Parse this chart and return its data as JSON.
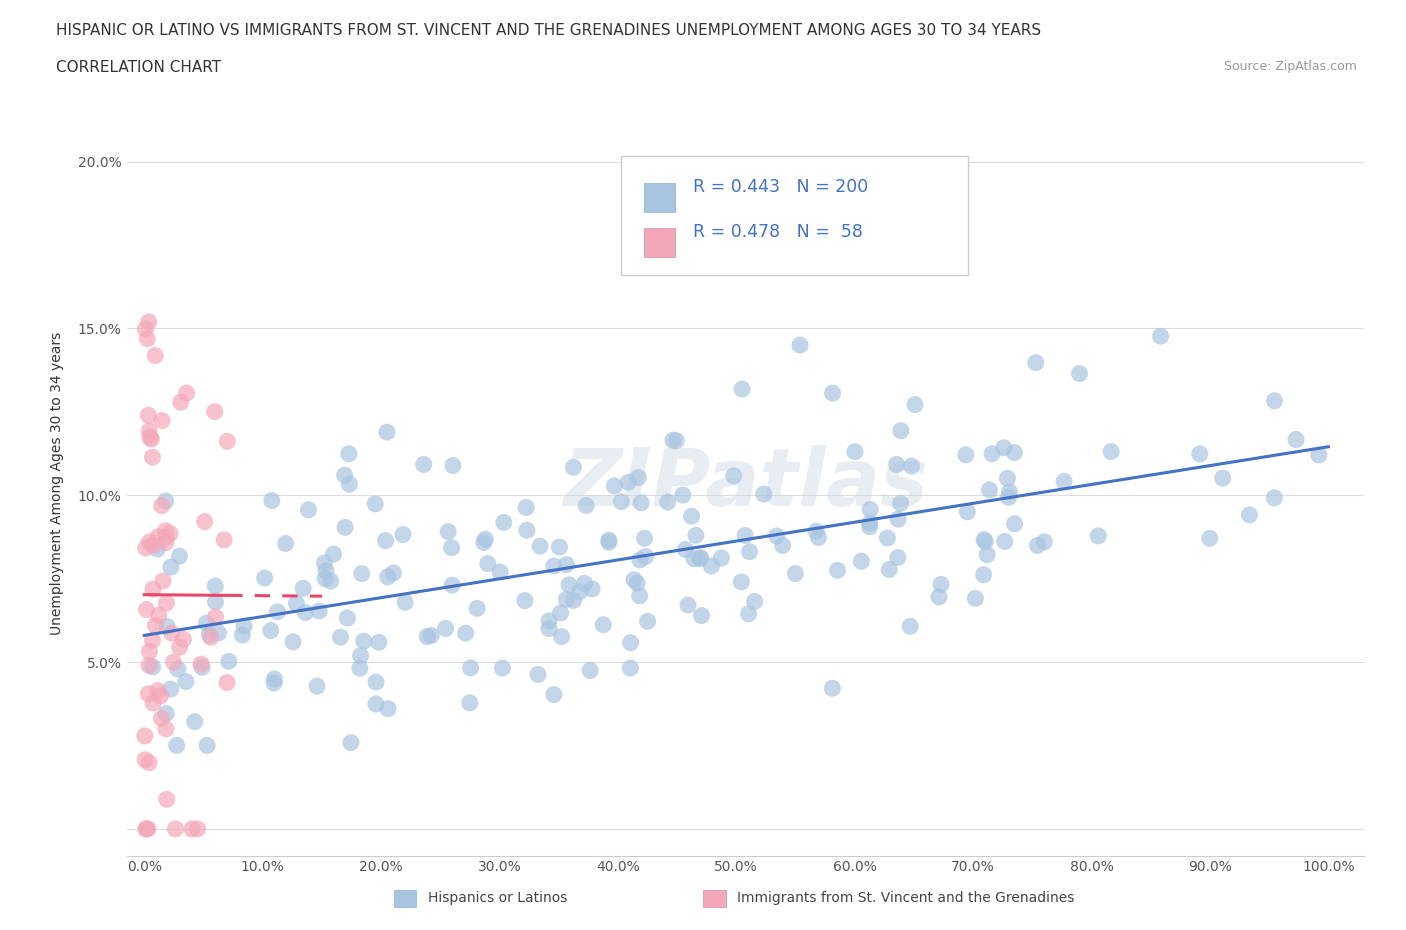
{
  "title_line1": "HISPANIC OR LATINO VS IMMIGRANTS FROM ST. VINCENT AND THE GRENADINES UNEMPLOYMENT AMONG AGES 30 TO 34 YEARS",
  "title_line2": "CORRELATION CHART",
  "source_text": "Source: ZipAtlas.com",
  "ylabel": "Unemployment Among Ages 30 to 34 years",
  "xticklabels": [
    "0.0%",
    "10.0%",
    "20.0%",
    "30.0%",
    "40.0%",
    "50.0%",
    "60.0%",
    "70.0%",
    "80.0%",
    "90.0%",
    "100.0%"
  ],
  "yticklabels": [
    "",
    "5.0%",
    "10.0%",
    "15.0%",
    "20.0%"
  ],
  "blue_color": "#a8c4e0",
  "blue_line_color": "#4472c4",
  "pink_color": "#f4a7b9",
  "pink_line_color": "#e8476a",
  "R_blue": 0.443,
  "N_blue": 200,
  "R_pink": 0.478,
  "N_pink": 58,
  "legend_label_blue": "Hispanics or Latinos",
  "legend_label_pink": "Immigrants from St. Vincent and the Grenadines",
  "watermark": "ZIPatlas",
  "background_color": "#ffffff",
  "grid_color": "#dddddd",
  "legend_r_color": "#4472c4"
}
